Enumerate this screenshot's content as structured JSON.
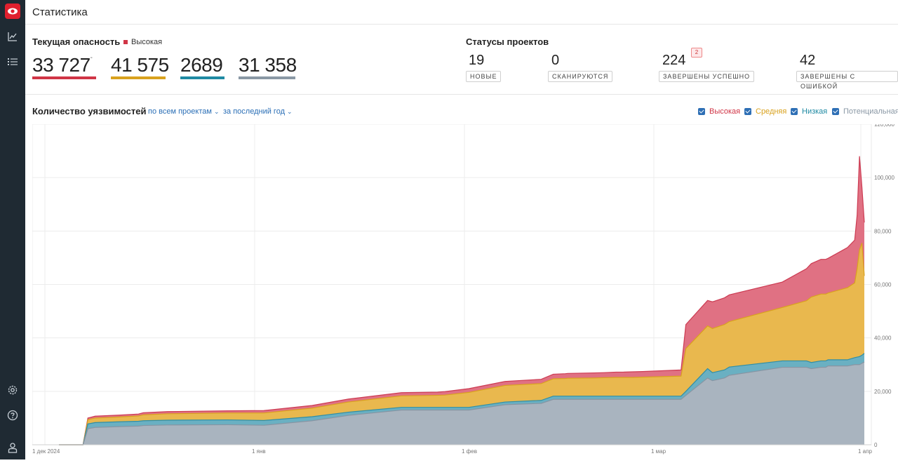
{
  "page": {
    "title": "Статистика"
  },
  "sidebar": {
    "icons": [
      "logo-icon",
      "chart-icon",
      "list-icon",
      "settings-icon",
      "help-icon",
      "user-icon"
    ]
  },
  "danger": {
    "title": "Текущая опасность",
    "legend_label": "Высокая",
    "values": [
      {
        "value": "33 727",
        "color": "#d03546"
      },
      {
        "value": "41 575",
        "color": "#d9a21e"
      },
      {
        "value": "2689",
        "color": "#1f8aa3"
      },
      {
        "value": "31 358",
        "color": "#8a98a5"
      }
    ]
  },
  "statuses": {
    "title": "Статусы проектов",
    "items": [
      {
        "count": "19",
        "label": "НОВЫЕ"
      },
      {
        "count": "0",
        "label": "СКАНИРУЮТСЯ"
      },
      {
        "count": "224",
        "label": "ЗАВЕРШЕНЫ УСПЕШНО",
        "badge": "2"
      },
      {
        "count": "42",
        "label": "ЗАВЕРШЕНЫ С ОШИБКОЙ"
      }
    ]
  },
  "chart_header": {
    "title": "Количество уязвимостей",
    "filter_projects": "по всем проектам",
    "filter_period": "за последний год",
    "legend": [
      {
        "label": "Высокая",
        "color": "#d03546"
      },
      {
        "label": "Средняя",
        "color": "#d9a21e"
      },
      {
        "label": "Низкая",
        "color": "#1f8aa3"
      },
      {
        "label": "Потенциальная",
        "color": "#8a98a5"
      }
    ]
  },
  "chart_data": {
    "type": "area",
    "stacked": true,
    "x_tick_labels": [
      "1 дек 2024",
      "1 янв",
      "1 фев",
      "1 мар",
      "1 апр"
    ],
    "y_tick_labels": [
      "0",
      "20,000",
      "40,000",
      "60,000",
      "80,000",
      "100,000",
      "120,000"
    ],
    "ylim": [
      0,
      120000
    ],
    "y_axis_position": "right",
    "grid": true,
    "x_days_from_dec1": [
      0,
      10,
      12,
      15,
      25,
      33,
      35,
      45,
      70,
      85,
      105,
      120,
      142,
      150,
      157,
      160,
      170,
      185,
      200,
      205,
      210,
      211,
      222,
      226,
      231,
      234,
      238,
      242,
      250,
      258,
      260,
      269,
      271,
      276,
      278,
      300,
      310,
      312,
      316,
      318,
      319,
      327,
      330,
      331,
      332,
      333,
      334
    ],
    "series": [
      {
        "name": "Потенциальная",
        "color": "#a9b4bf",
        "values": [
          0,
          0,
          6000,
          6500,
          6800,
          7000,
          7200,
          7400,
          7500,
          7300,
          9000,
          11000,
          13000,
          13000,
          13000,
          13000,
          13000,
          15000,
          15500,
          17000,
          17000,
          17000,
          17000,
          17000,
          17000,
          17000,
          17000,
          17000,
          17000,
          17000,
          18500,
          25000,
          24000,
          25000,
          26000,
          29000,
          29000,
          28500,
          29000,
          29000,
          29500,
          29500,
          30000,
          30000,
          30000,
          30500,
          31000
        ]
      },
      {
        "name": "Низкая",
        "color": "#6ab0c2",
        "values": [
          0,
          0,
          1800,
          1800,
          1800,
          1800,
          1800,
          1800,
          1800,
          1800,
          1500,
          1200,
          1000,
          1000,
          1000,
          1000,
          1000,
          1000,
          1100,
          1200,
          1200,
          1200,
          1200,
          1200,
          1200,
          1200,
          1200,
          1200,
          1200,
          1200,
          1500,
          3500,
          3000,
          3000,
          3100,
          2400,
          2400,
          2300,
          2400,
          2400,
          2300,
          2300,
          2600,
          2800,
          3000,
          3000,
          3200
        ]
      },
      {
        "name": "Средняя",
        "color": "#e9b84e",
        "values": [
          0,
          0,
          1600,
          1700,
          1800,
          2000,
          2200,
          2400,
          2600,
          2800,
          3200,
          3800,
          4300,
          4400,
          4500,
          4600,
          5600,
          6200,
          6300,
          6500,
          6600,
          6700,
          6800,
          6900,
          7000,
          7000,
          7000,
          7100,
          7300,
          7500,
          16000,
          16000,
          16500,
          17000,
          17000,
          20000,
          22500,
          24500,
          25000,
          25000,
          25000,
          27000,
          28000,
          33000,
          40000,
          42000,
          29000
        ]
      },
      {
        "name": "Высокая",
        "color": "#e07183",
        "values": [
          0,
          0,
          600,
          700,
          700,
          700,
          800,
          800,
          800,
          900,
          1000,
          1100,
          1200,
          1200,
          1200,
          1300,
          1400,
          1500,
          1600,
          1700,
          1800,
          1800,
          1900,
          1900,
          2000,
          2000,
          2100,
          2100,
          2200,
          2300,
          9000,
          9500,
          10000,
          10000,
          10000,
          9500,
          12000,
          12500,
          13000,
          13000,
          13000,
          15000,
          16000,
          20000,
          35000,
          21000,
          20000
        ]
      }
    ]
  }
}
